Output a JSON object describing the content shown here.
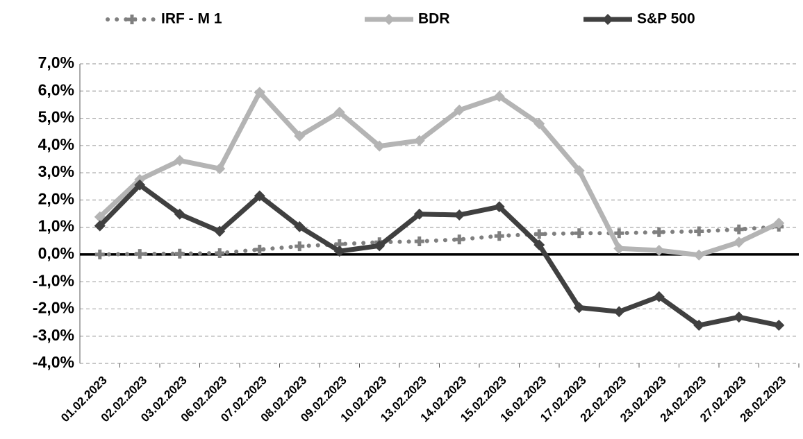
{
  "chart_data": {
    "type": "line",
    "categories": [
      "01.02.2023",
      "02.02.2023",
      "03.02.2023",
      "06.02.2023",
      "07.02.2023",
      "08.02.2023",
      "09.02.2023",
      "10.02.2023",
      "13.02.2023",
      "14.02.2023",
      "15.02.2023",
      "16.02.2023",
      "17.02.2023",
      "22.02.2023",
      "23.02.2023",
      "24.02.2023",
      "27.02.2023",
      "28.02.2023"
    ],
    "series": [
      {
        "name": "IRF - M 1",
        "color": "#7f7f7f",
        "style": "dotted",
        "values": [
          0.0,
          0.02,
          0.03,
          0.05,
          0.18,
          0.3,
          0.38,
          0.45,
          0.48,
          0.55,
          0.68,
          0.75,
          0.78,
          0.78,
          0.82,
          0.85,
          0.92,
          1.02
        ]
      },
      {
        "name": "BDR",
        "color": "#b4b4b4",
        "style": "solid",
        "values": [
          1.38,
          2.75,
          3.45,
          3.15,
          5.95,
          4.35,
          5.22,
          3.98,
          4.18,
          5.3,
          5.8,
          4.8,
          3.08,
          0.22,
          0.15,
          -0.02,
          0.45,
          1.15
        ]
      },
      {
        "name": "S&P 500",
        "color": "#404040",
        "style": "solid",
        "values": [
          1.05,
          2.55,
          1.48,
          0.85,
          2.15,
          1.02,
          0.12,
          0.32,
          1.48,
          1.45,
          1.75,
          0.35,
          -1.95,
          -2.1,
          -1.55,
          -2.6,
          -2.3,
          -2.6
        ]
      }
    ],
    "ylim": [
      -4,
      7
    ],
    "yticks": [
      {
        "value": -4,
        "label": "-4,0%"
      },
      {
        "value": -3,
        "label": "-3,0%"
      },
      {
        "value": -2,
        "label": "-2,0%"
      },
      {
        "value": -1,
        "label": "-1,0%"
      },
      {
        "value": 0,
        "label": "0,0%"
      },
      {
        "value": 1,
        "label": "1,0%"
      },
      {
        "value": 2,
        "label": "2,0%"
      },
      {
        "value": 3,
        "label": "3,0%"
      },
      {
        "value": 4,
        "label": "4,0%"
      },
      {
        "value": 5,
        "label": "5,0%"
      },
      {
        "value": 6,
        "label": "6,0%"
      },
      {
        "value": 7,
        "label": "7,0%"
      }
    ],
    "grid": true,
    "legend": "top"
  }
}
